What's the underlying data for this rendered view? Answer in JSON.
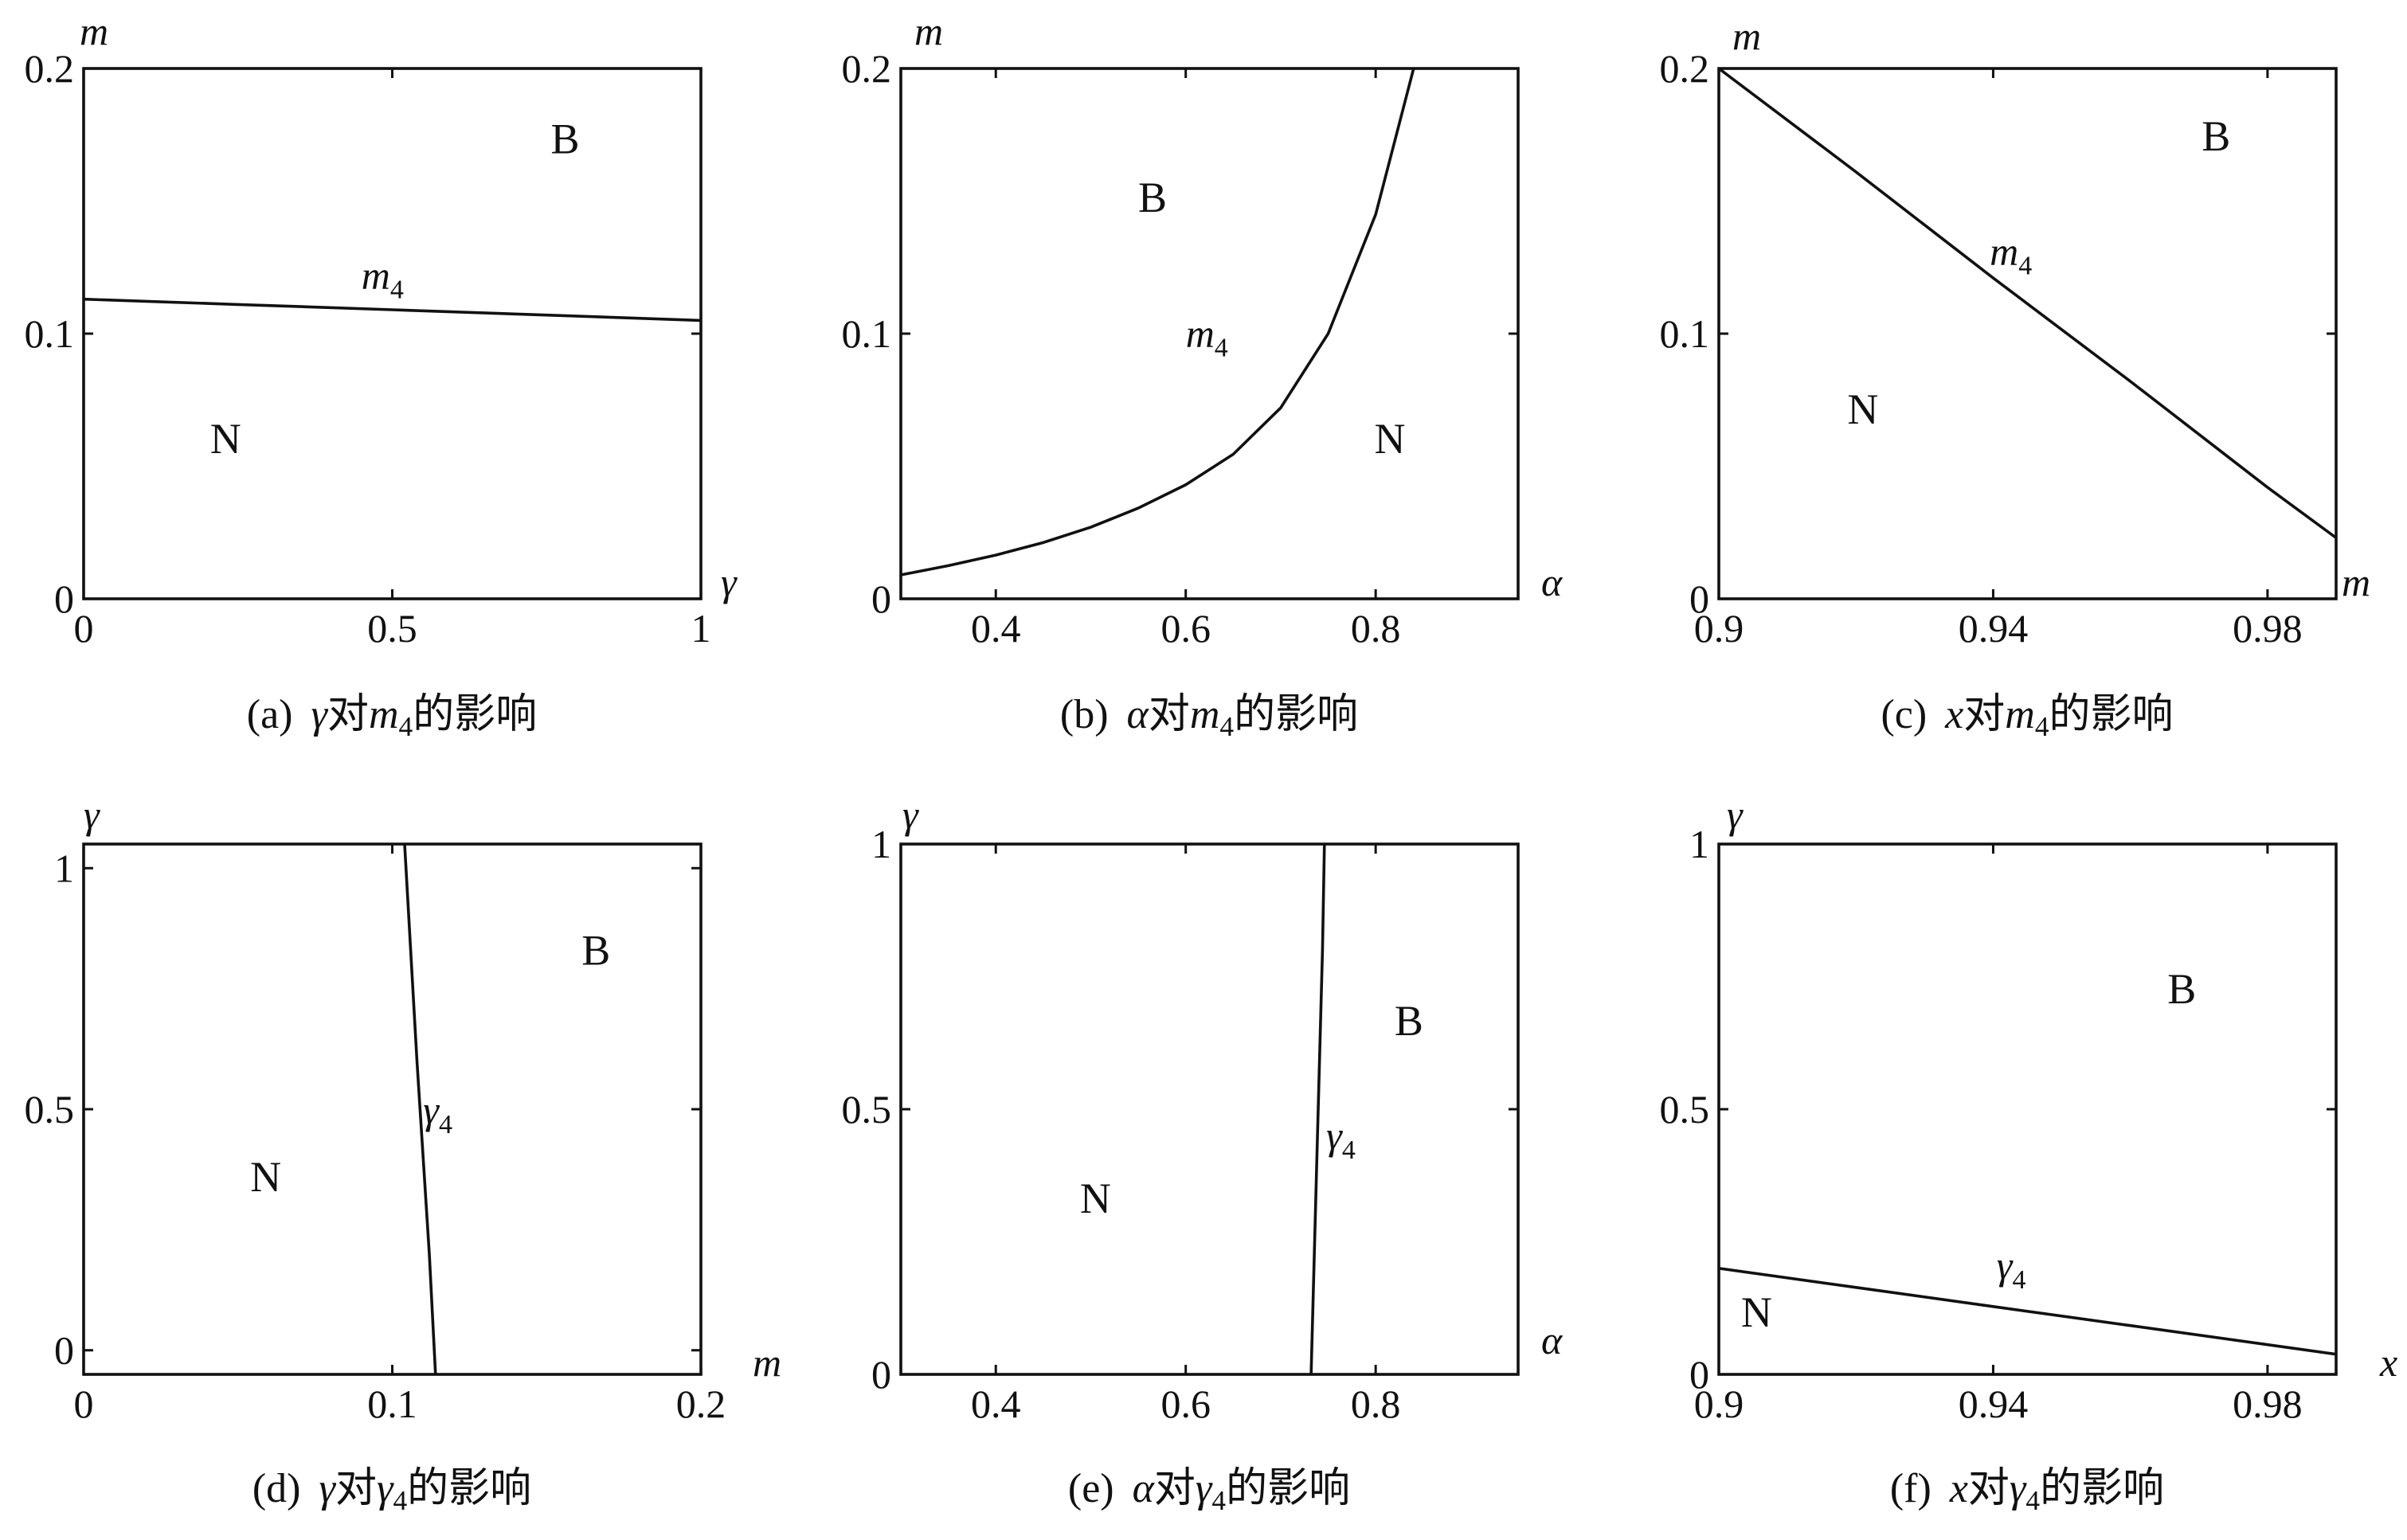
{
  "figure": {
    "panels": [
      {
        "caption": {
          "label": "(a)",
          "var": "γ",
          "mid": "对",
          "target": "m",
          "target_sub": "4",
          "tail": "的影响"
        },
        "ylabel": "m",
        "xlabel": "γ",
        "yticks": [
          {
            "v": 0,
            "t": "0"
          },
          {
            "v": 0.1,
            "t": "0.1"
          },
          {
            "v": 0.2,
            "t": "0.2"
          }
        ],
        "xticks": [
          {
            "v": 0,
            "t": "0"
          },
          {
            "v": 0.5,
            "t": "0.5"
          },
          {
            "v": 1,
            "t": "1"
          }
        ],
        "regions": [
          {
            "t": "B",
            "x": 0.78,
            "y": 0.168
          },
          {
            "t": "N",
            "x": 0.23,
            "y": 0.055
          }
        ],
        "curve_label": {
          "base": "m",
          "sub": "4",
          "x": 0.45,
          "y": 0.117
        }
      },
      {
        "caption": {
          "label": "(b)",
          "var": "α",
          "mid": "对",
          "target": "m",
          "target_sub": "4",
          "tail": "的影响"
        },
        "ylabel": "m",
        "xlabel": "α",
        "yticks": [
          {
            "v": 0,
            "t": "0"
          },
          {
            "v": 0.1,
            "t": "0.1"
          },
          {
            "v": 0.2,
            "t": "0.2"
          }
        ],
        "xticks": [
          {
            "v": 0.4,
            "t": "0.4"
          },
          {
            "v": 0.6,
            "t": "0.6"
          },
          {
            "v": 0.8,
            "t": "0.8"
          }
        ],
        "regions": [
          {
            "t": "B",
            "x": 0.565,
            "y": 0.146
          },
          {
            "t": "N",
            "x": 0.815,
            "y": 0.055
          }
        ],
        "curve_label": {
          "base": "m",
          "sub": "4",
          "x": 0.6,
          "y": 0.095
        }
      },
      {
        "caption": {
          "label": "(c)",
          "var": "x",
          "mid": "对",
          "target": "m",
          "target_sub": "4",
          "tail": "的影响"
        },
        "ylabel": "m",
        "xlabel": "m",
        "yticks": [
          {
            "v": 0,
            "t": "0"
          },
          {
            "v": 0.1,
            "t": "0.1"
          },
          {
            "v": 0.2,
            "t": "0.2"
          }
        ],
        "xticks": [
          {
            "v": 0.9,
            "t": "0.9"
          },
          {
            "v": 0.94,
            "t": "0.94"
          },
          {
            "v": 0.98,
            "t": "0.98"
          }
        ],
        "regions": [
          {
            "t": "B",
            "x": 0.9725,
            "y": 0.169
          },
          {
            "t": "N",
            "x": 0.921,
            "y": 0.066
          }
        ],
        "curve_label": {
          "base": "m",
          "sub": "4",
          "x": 0.9395,
          "y": 0.126
        }
      },
      {
        "caption": {
          "label": "(d)",
          "var": "γ",
          "mid": "对",
          "target": "γ",
          "target_sub": "4",
          "tail": "的影响"
        },
        "ylabel": "γ",
        "xlabel": "m",
        "yticks": [
          {
            "v": 0,
            "t": "0"
          },
          {
            "v": 0.5,
            "t": "0.5"
          },
          {
            "v": 1,
            "t": "1"
          }
        ],
        "xticks": [
          {
            "v": 0,
            "t": "0"
          },
          {
            "v": 0.1,
            "t": "0.1"
          },
          {
            "v": 0.2,
            "t": "0.2"
          }
        ],
        "regions": [
          {
            "t": "B",
            "x": 0.166,
            "y": 0.8
          },
          {
            "t": "N",
            "x": 0.059,
            "y": 0.33
          }
        ],
        "curve_label": {
          "base": "γ",
          "sub": "4",
          "x": 0.11,
          "y": 0.47
        }
      },
      {
        "caption": {
          "label": "(e)",
          "var": "α",
          "mid": "对",
          "target": "γ",
          "target_sub": "4",
          "tail": "的影响"
        },
        "ylabel": "γ",
        "xlabel": "α",
        "yticks": [
          {
            "v": 0,
            "t": "0"
          },
          {
            "v": 0.5,
            "t": "0.5"
          },
          {
            "v": 1,
            "t": "1"
          }
        ],
        "xticks": [
          {
            "v": 0.4,
            "t": "0.4"
          },
          {
            "v": 0.6,
            "t": "0.6"
          },
          {
            "v": 0.8,
            "t": "0.8"
          }
        ],
        "regions": [
          {
            "t": "B",
            "x": 0.835,
            "y": 0.64
          },
          {
            "t": "N",
            "x": 0.505,
            "y": 0.305
          }
        ],
        "curve_label": {
          "base": "γ",
          "sub": "4",
          "x": 0.748,
          "y": 0.425
        }
      },
      {
        "caption": {
          "label": "(f)",
          "var": "x",
          "mid": "对",
          "target": "γ",
          "target_sub": "4",
          "tail": "的影响"
        },
        "ylabel": "γ",
        "xlabel": "x",
        "yticks": [
          {
            "v": 0,
            "t": "0"
          },
          {
            "v": 0.5,
            "t": "0.5"
          },
          {
            "v": 1,
            "t": "1"
          }
        ],
        "xticks": [
          {
            "v": 0.9,
            "t": "0.9"
          },
          {
            "v": 0.94,
            "t": "0.94"
          },
          {
            "v": 0.98,
            "t": "0.98"
          }
        ],
        "regions": [
          {
            "t": "B",
            "x": 0.9675,
            "y": 0.7
          },
          {
            "t": "N",
            "x": 0.9055,
            "y": 0.09
          }
        ],
        "curve_label": {
          "base": "γ",
          "sub": "4",
          "x": 0.9405,
          "y": 0.18
        }
      }
    ]
  },
  "chart_data": [
    {
      "type": "line",
      "xlim": [
        0,
        1
      ],
      "ylim": [
        0,
        0.2
      ],
      "series": [
        {
          "name": "m4",
          "x": [
            0,
            0.25,
            0.5,
            0.75,
            1
          ],
          "y": [
            0.113,
            0.111,
            0.109,
            0.107,
            0.105
          ]
        }
      ]
    },
    {
      "type": "line",
      "xlim": [
        0.3,
        0.95
      ],
      "ylim": [
        0,
        0.2
      ],
      "series": [
        {
          "name": "m4",
          "x": [
            0.3,
            0.35,
            0.4,
            0.45,
            0.5,
            0.55,
            0.6,
            0.65,
            0.7,
            0.75,
            0.8,
            0.84
          ],
          "y": [
            0.009,
            0.0125,
            0.0165,
            0.0212,
            0.027,
            0.0342,
            0.043,
            0.0545,
            0.072,
            0.1,
            0.145,
            0.2
          ]
        }
      ]
    },
    {
      "type": "line",
      "xlim": [
        0.9,
        0.99
      ],
      "ylim": [
        0,
        0.2
      ],
      "series": [
        {
          "name": "m4",
          "x": [
            0.9,
            0.92,
            0.94,
            0.96,
            0.98,
            0.99
          ],
          "y": [
            0.2,
            0.161,
            0.121,
            0.082,
            0.042,
            0.023
          ]
        }
      ]
    },
    {
      "type": "line",
      "xlim": [
        0,
        0.2
      ],
      "ylim": [
        -0.05,
        1.05
      ],
      "series": [
        {
          "name": "γ4",
          "x": [
            0.104,
            0.108,
            0.112,
            0.114
          ],
          "y": [
            1.05,
            0.6,
            0.2,
            -0.05
          ]
        }
      ]
    },
    {
      "type": "line",
      "xlim": [
        0.3,
        0.95
      ],
      "ylim": [
        0,
        1
      ],
      "series": [
        {
          "name": "γ4",
          "x": [
            0.732,
            0.738,
            0.744,
            0.746
          ],
          "y": [
            0,
            0.4,
            0.8,
            1
          ]
        }
      ]
    },
    {
      "type": "line",
      "xlim": [
        0.9,
        0.99
      ],
      "ylim": [
        0,
        1
      ],
      "series": [
        {
          "name": "γ4",
          "x": [
            0.9,
            0.92,
            0.94,
            0.96,
            0.98,
            0.99
          ],
          "y": [
            0.2,
            0.164,
            0.128,
            0.092,
            0.056,
            0.038
          ]
        }
      ]
    }
  ]
}
